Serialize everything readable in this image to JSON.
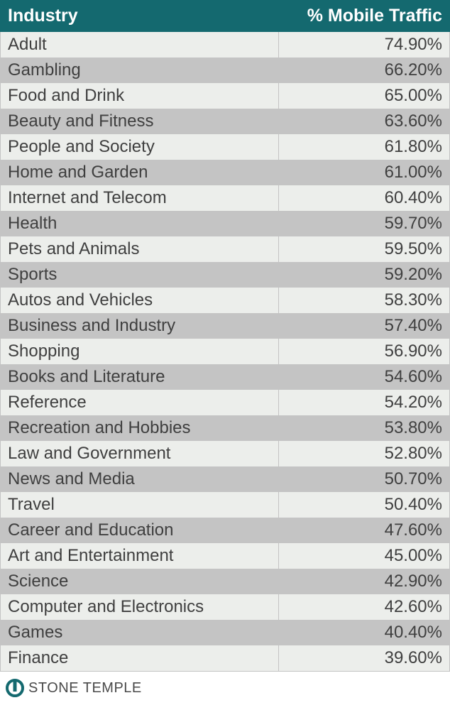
{
  "style": {
    "header_bg": "#14696f",
    "header_fg": "#ffffff",
    "row_even": "#eceeeb",
    "row_odd": "#c4c4c4",
    "text_color": "#3f3f3f",
    "border_color": "#c4c4c4",
    "logo_color": "#14696f",
    "logo_text_color": "#4a4a4a",
    "header_fontsize": 25,
    "cell_fontsize": 24
  },
  "table": {
    "type": "table",
    "columns": [
      {
        "label": "Industry",
        "align": "left",
        "width_pct": 62
      },
      {
        "label": "% Mobile Traffic",
        "align": "right",
        "width_pct": 38
      }
    ],
    "rows": [
      [
        "Adult",
        "74.90%"
      ],
      [
        "Gambling",
        "66.20%"
      ],
      [
        "Food and Drink",
        "65.00%"
      ],
      [
        "Beauty and Fitness",
        "63.60%"
      ],
      [
        "People and Society",
        "61.80%"
      ],
      [
        "Home and Garden",
        "61.00%"
      ],
      [
        "Internet and Telecom",
        "60.40%"
      ],
      [
        "Health",
        "59.70%"
      ],
      [
        "Pets and Animals",
        "59.50%"
      ],
      [
        "Sports",
        "59.20%"
      ],
      [
        "Autos and Vehicles",
        "58.30%"
      ],
      [
        "Business and Industry",
        "57.40%"
      ],
      [
        "Shopping",
        "56.90%"
      ],
      [
        "Books and Literature",
        "54.60%"
      ],
      [
        "Reference",
        "54.20%"
      ],
      [
        "Recreation and Hobbies",
        "53.80%"
      ],
      [
        "Law and Government",
        "52.80%"
      ],
      [
        "News and Media",
        "50.70%"
      ],
      [
        "Travel",
        "50.40%"
      ],
      [
        "Career and Education",
        "47.60%"
      ],
      [
        "Art and Entertainment",
        "45.00%"
      ],
      [
        "Science",
        "42.90%"
      ],
      [
        "Computer and Electronics",
        "42.60%"
      ],
      [
        "Games",
        "40.40%"
      ],
      [
        "Finance",
        "39.60%"
      ]
    ]
  },
  "footer": {
    "brand": "STONE TEMPLE"
  }
}
